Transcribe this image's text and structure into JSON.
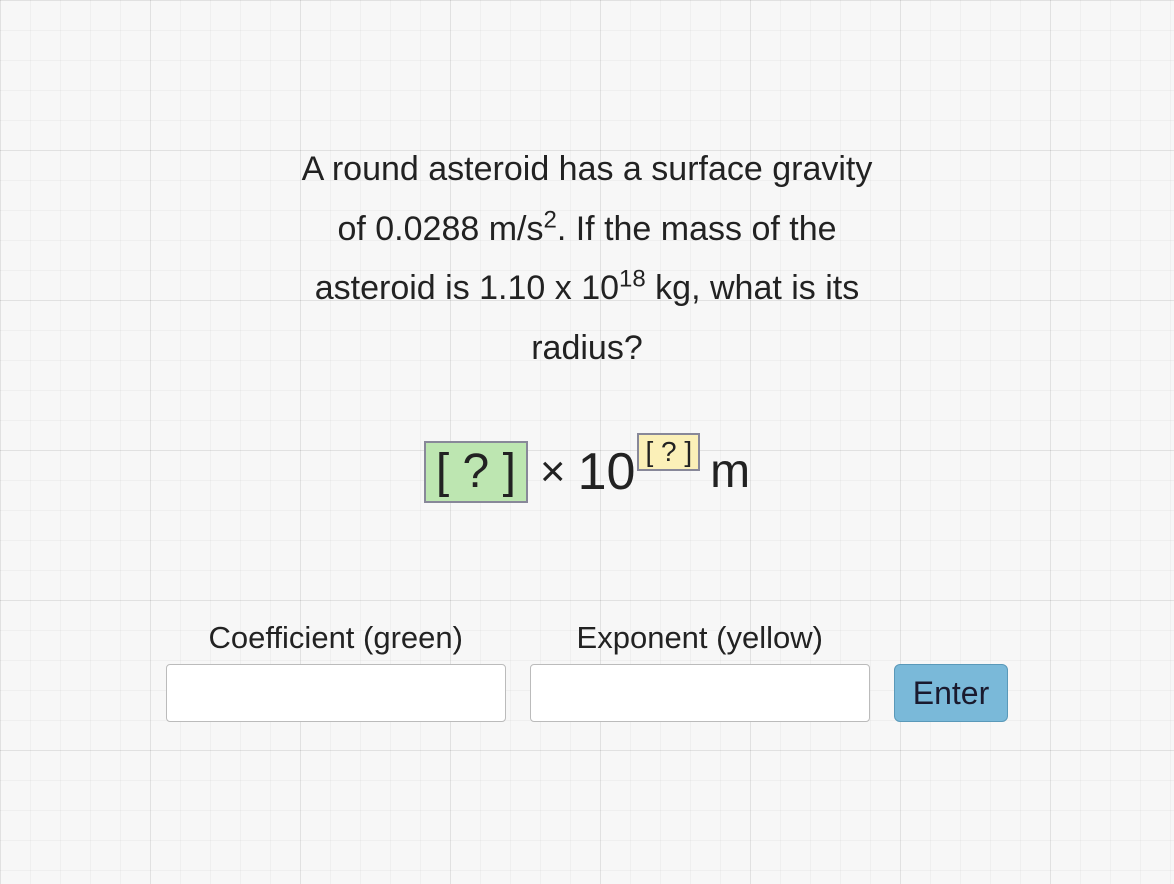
{
  "background_color": "#f7f7f7",
  "grid_fine_color": "rgba(0,0,0,0.03)",
  "grid_coarse_color": "rgba(0,0,0,0.06)",
  "prompt": {
    "line1_pre": "A round asteroid has a surface gravity",
    "line2_pre": "of 0.0288 m/s",
    "line2_sup": "2",
    "line2_post": ". If the mass of the",
    "line3_pre": "asteroid is 1.10 x 10",
    "line3_sup": "18",
    "line3_post": " kg, what is its",
    "line4": "radius?",
    "font_size": 34,
    "text_color": "#222"
  },
  "answer_template": {
    "coef_placeholder": "[ ? ]",
    "times_symbol": "×",
    "base": "10",
    "exp_placeholder": "[ ? ]",
    "unit": "m",
    "coef_box_color": "#bde6b1",
    "exp_box_color": "#fbf0b8",
    "border_color": "#889",
    "font_size": 52
  },
  "inputs": {
    "coef_label": "Coefficient (green)",
    "exp_label": "Exponent (yellow)",
    "coef_value": "",
    "exp_value": "",
    "input_width": 340,
    "input_height": 58,
    "font_size": 31
  },
  "button": {
    "label": "Enter",
    "background_color": "#7ab9d9",
    "border_color": "#5a99b9",
    "text_color": "#1a1a2e",
    "font_size": 32
  }
}
